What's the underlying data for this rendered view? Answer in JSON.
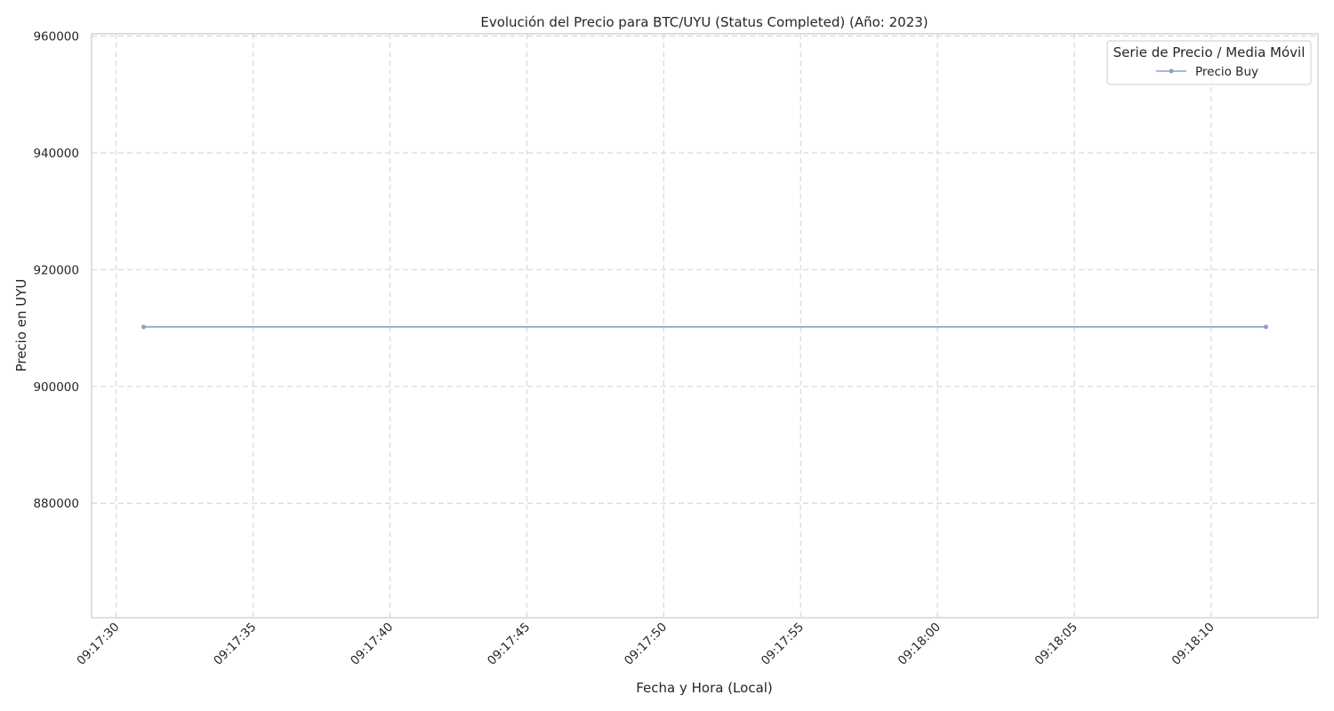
{
  "chart_data": {
    "type": "line",
    "title": "Evolución del Precio para BTC/UYU (Status Completed) (Año: 2023)",
    "xlabel": "Fecha y Hora (Local)",
    "ylabel": "Precio en UYU",
    "x_ticks": [
      "09:17:30",
      "09:17:35",
      "09:17:40",
      "09:17:45",
      "09:17:50",
      "09:17:55",
      "09:18:00",
      "09:18:05",
      "09:18:10"
    ],
    "x_range": [
      "09:17:29.1",
      "09:18:13.9"
    ],
    "ylim": [
      860400,
      960400
    ],
    "y_ticks": [
      880000,
      900000,
      920000,
      940000,
      960000
    ],
    "grid": true,
    "series": [
      {
        "name": "Precio Buy",
        "color": "#8c9fca",
        "x": [
          "09:17:31",
          "09:18:12"
        ],
        "values": [
          910200,
          910200
        ]
      }
    ],
    "legend": {
      "title": "Serie de Precio / Media Móvil",
      "placement": "top-right"
    }
  }
}
